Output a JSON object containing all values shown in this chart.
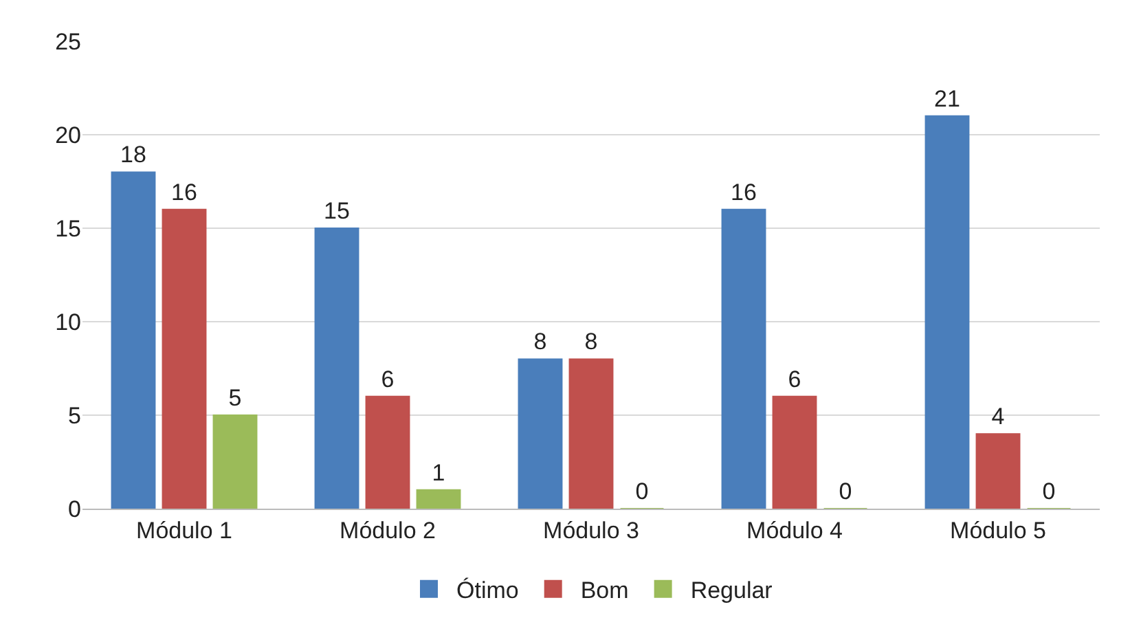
{
  "chart_data": {
    "type": "bar",
    "categories": [
      "Módulo 1",
      "Módulo 2",
      "Módulo 3",
      "Módulo 4",
      "Módulo 5"
    ],
    "series": [
      {
        "name": "Ótimo",
        "color": "#4a7ebb",
        "values": [
          18,
          15,
          8,
          16,
          21
        ]
      },
      {
        "name": "Bom",
        "color": "#c0504d",
        "values": [
          16,
          6,
          8,
          6,
          4
        ]
      },
      {
        "name": "Regular",
        "color": "#9bbb59",
        "values": [
          5,
          1,
          0,
          0,
          0
        ]
      }
    ],
    "ylim": [
      0,
      25
    ],
    "yticks": [
      0,
      5,
      10,
      15,
      20,
      25
    ],
    "grid": "y",
    "legend": "bottom",
    "data_labels": true
  }
}
